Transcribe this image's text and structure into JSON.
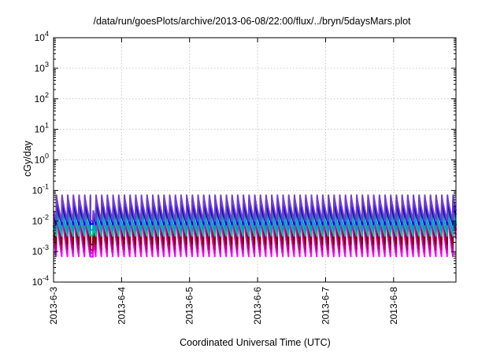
{
  "chart_data": {
    "type": "line",
    "title": "/data/run/goesPlots/archive/2013-06-08/22:00/flux/../bryn/5daysMars.plot",
    "xlabel": "Coordinated Universal Time (UTC)",
    "ylabel": "cGy/day",
    "x_scale": "date",
    "xlim": [
      "2013-06-03T00:00",
      "2013-06-08T22:00"
    ],
    "x_ticks": [
      "2013-6-3",
      "2013-6-4",
      "2013-6-5",
      "2013-6-6",
      "2013-6-7",
      "2013-6-8"
    ],
    "y_scale": "log",
    "ylim": [
      0.0001,
      10000
    ],
    "y_ticks": [
      {
        "value": 0.0001,
        "base": "10",
        "exp": "-4"
      },
      {
        "value": 0.001,
        "base": "10",
        "exp": "-3"
      },
      {
        "value": 0.01,
        "base": "10",
        "exp": "-2"
      },
      {
        "value": 0.1,
        "base": "10",
        "exp": "-1"
      },
      {
        "value": 1,
        "base": "10",
        "exp": "0"
      },
      {
        "value": 10,
        "base": "10",
        "exp": "1"
      },
      {
        "value": 100,
        "base": "10",
        "exp": "2"
      },
      {
        "value": 1000,
        "base": "10",
        "exp": "3"
      },
      {
        "value": 10000,
        "base": "10",
        "exp": "4"
      }
    ],
    "grid": true,
    "pattern": {
      "description_free": true,
      "periods_per_day": 12,
      "first_peak_time": "2013-06-03T01:00",
      "gap_start": "2013-06-03T13:00",
      "gap_end": "2013-06-03T14:00"
    },
    "series": [
      {
        "color": "#ff00ff",
        "peak": 0.02,
        "trough": 0.0006
      },
      {
        "color": "#dd00dd",
        "peak": 0.025,
        "trough": 0.0008
      },
      {
        "color": "#b0006a",
        "peak": 0.045,
        "trough": 0.001
      },
      {
        "color": "#800000",
        "peak": 0.06,
        "trough": 0.0015
      },
      {
        "color": "#00c0a0",
        "peak": 0.018,
        "trough": 0.003
      },
      {
        "color": "#00a0c0",
        "peak": 0.022,
        "trough": 0.0045
      },
      {
        "color": "#0000ff",
        "peak": 0.05,
        "trough": 0.007
      },
      {
        "color": "#7040d0",
        "peak": 0.07,
        "trough": 0.009
      }
    ]
  }
}
